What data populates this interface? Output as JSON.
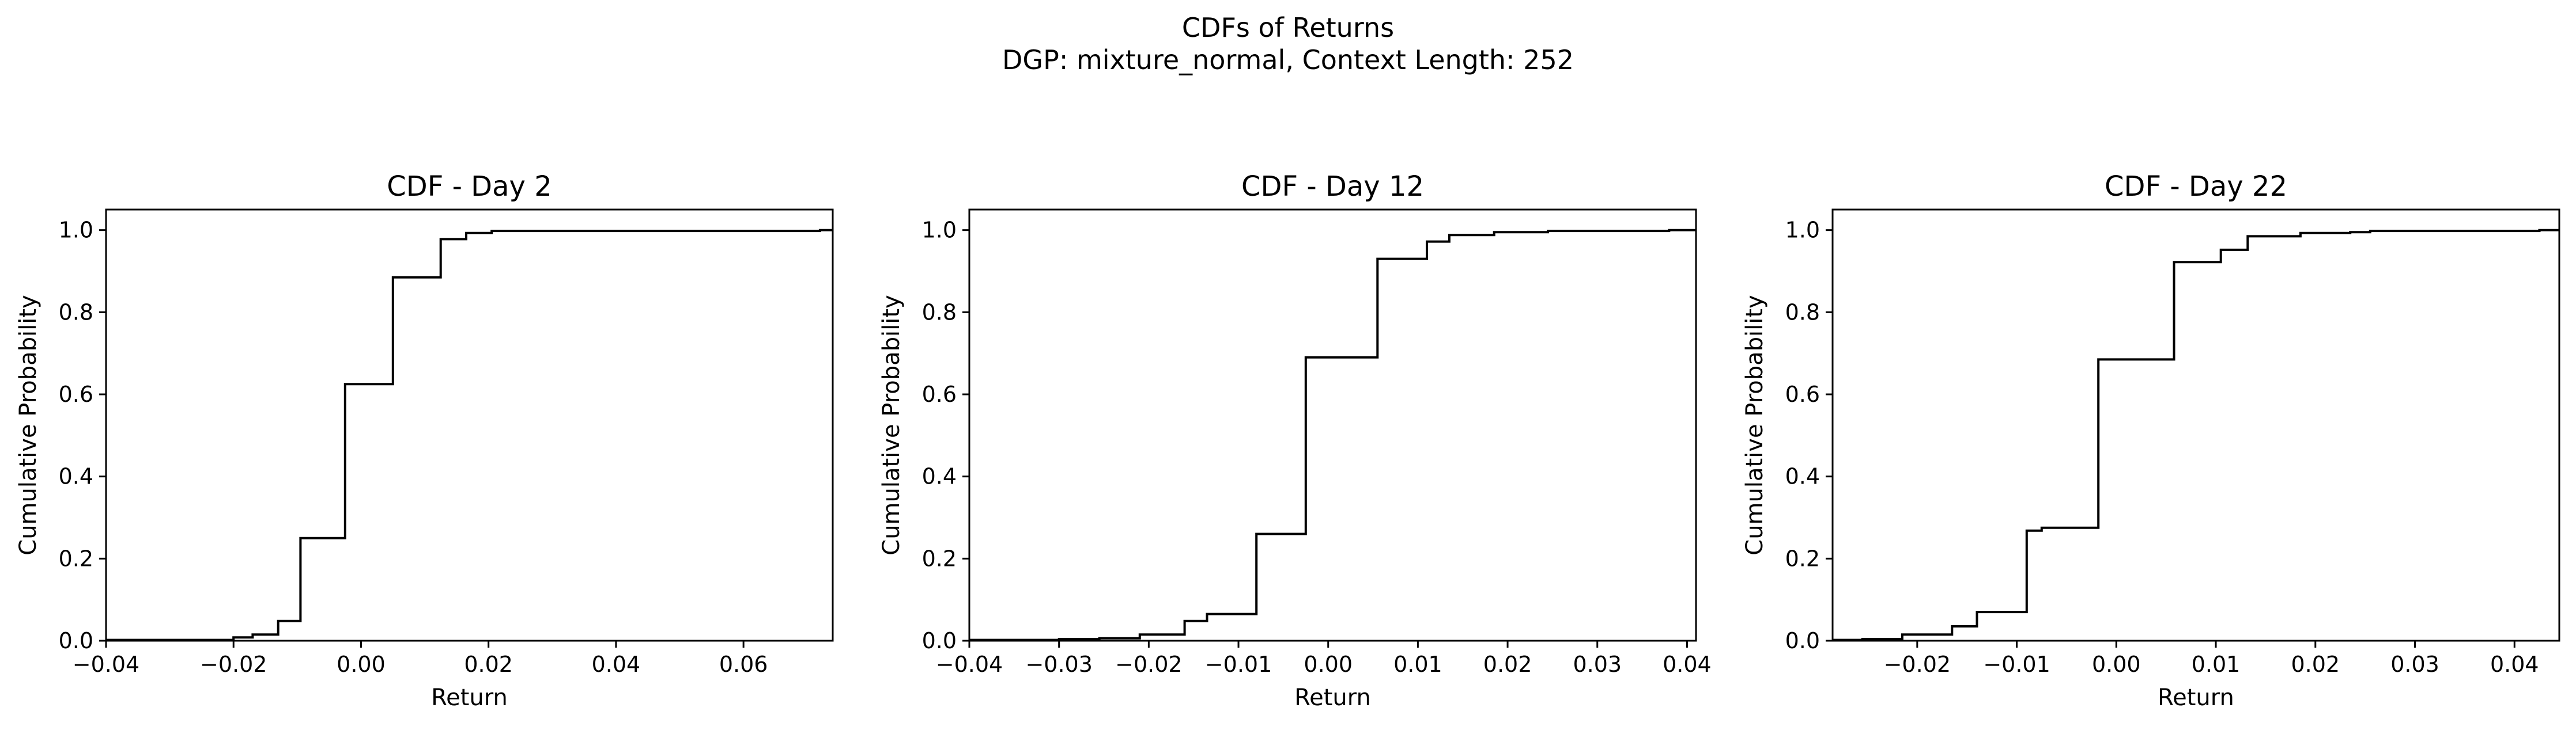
{
  "figure": {
    "title_line1": "CDFs of Returns",
    "title_line2": "DGP: mixture_normal, Context Length: 252"
  },
  "chart_data": [
    {
      "type": "line",
      "drawstyle": "steps-post",
      "title": "CDF - Day 2",
      "xlabel": "Return",
      "ylabel": "Cumulative Probability",
      "xlim": [
        -0.04,
        0.074
      ],
      "ylim": [
        0,
        1.05
      ],
      "xticks": [
        -0.04,
        -0.02,
        0.0,
        0.02,
        0.04,
        0.06
      ],
      "xtick_labels": [
        "−0.04",
        "−0.02",
        "0.00",
        "0.02",
        "0.04",
        "0.06"
      ],
      "yticks": [
        0.0,
        0.2,
        0.4,
        0.6,
        0.8,
        1.0
      ],
      "ytick_labels": [
        "0.0",
        "0.2",
        "0.4",
        "0.6",
        "0.8",
        "1.0"
      ],
      "grid": false,
      "color": "#000000",
      "x": [
        -0.04,
        -0.02,
        -0.017,
        -0.013,
        -0.0095,
        -0.0025,
        0.005,
        0.0125,
        0.0165,
        0.0205,
        0.072,
        0.074
      ],
      "y": [
        0.002,
        0.008,
        0.015,
        0.048,
        0.25,
        0.625,
        0.885,
        0.978,
        0.993,
        0.998,
        1.0,
        1.0
      ]
    },
    {
      "type": "line",
      "drawstyle": "steps-post",
      "title": "CDF - Day 12",
      "xlabel": "Return",
      "ylabel": "Cumulative Probability",
      "xlim": [
        -0.04,
        0.041
      ],
      "ylim": [
        0,
        1.05
      ],
      "xticks": [
        -0.04,
        -0.03,
        -0.02,
        -0.01,
        0.0,
        0.01,
        0.02,
        0.03,
        0.04
      ],
      "xtick_labels": [
        "−0.04",
        "−0.03",
        "−0.02",
        "−0.01",
        "0.00",
        "0.01",
        "0.02",
        "0.03",
        "0.04"
      ],
      "yticks": [
        0.0,
        0.2,
        0.4,
        0.6,
        0.8,
        1.0
      ],
      "ytick_labels": [
        "0.0",
        "0.2",
        "0.4",
        "0.6",
        "0.8",
        "1.0"
      ],
      "grid": false,
      "color": "#000000",
      "x": [
        -0.04,
        -0.03,
        -0.0255,
        -0.021,
        -0.016,
        -0.0135,
        -0.008,
        -0.0025,
        0.0055,
        0.011,
        0.0135,
        0.0185,
        0.0245,
        0.038,
        0.041
      ],
      "y": [
        0.002,
        0.004,
        0.006,
        0.015,
        0.048,
        0.065,
        0.26,
        0.69,
        0.93,
        0.972,
        0.988,
        0.995,
        0.998,
        1.0,
        1.0
      ]
    },
    {
      "type": "line",
      "drawstyle": "steps-post",
      "title": "CDF - Day 22",
      "xlabel": "Return",
      "ylabel": "Cumulative Probability",
      "xlim": [
        -0.0285,
        0.0445
      ],
      "ylim": [
        0,
        1.05
      ],
      "xticks": [
        -0.02,
        -0.01,
        0.0,
        0.01,
        0.02,
        0.03,
        0.04
      ],
      "xtick_labels": [
        "−0.02",
        "−0.01",
        "0.00",
        "0.01",
        "0.02",
        "0.03",
        "0.04"
      ],
      "yticks": [
        0.0,
        0.2,
        0.4,
        0.6,
        0.8,
        1.0
      ],
      "ytick_labels": [
        "0.0",
        "0.2",
        "0.4",
        "0.6",
        "0.8",
        "1.0"
      ],
      "grid": false,
      "color": "#000000",
      "x": [
        -0.0285,
        -0.0255,
        -0.0215,
        -0.0165,
        -0.014,
        -0.009,
        -0.0075,
        -0.0018,
        0.0058,
        0.0105,
        0.0132,
        0.0185,
        0.0235,
        0.0255,
        0.0425,
        0.0445
      ],
      "y": [
        0.002,
        0.004,
        0.015,
        0.035,
        0.07,
        0.268,
        0.275,
        0.685,
        0.922,
        0.952,
        0.985,
        0.993,
        0.995,
        0.998,
        1.0,
        1.0
      ]
    }
  ]
}
